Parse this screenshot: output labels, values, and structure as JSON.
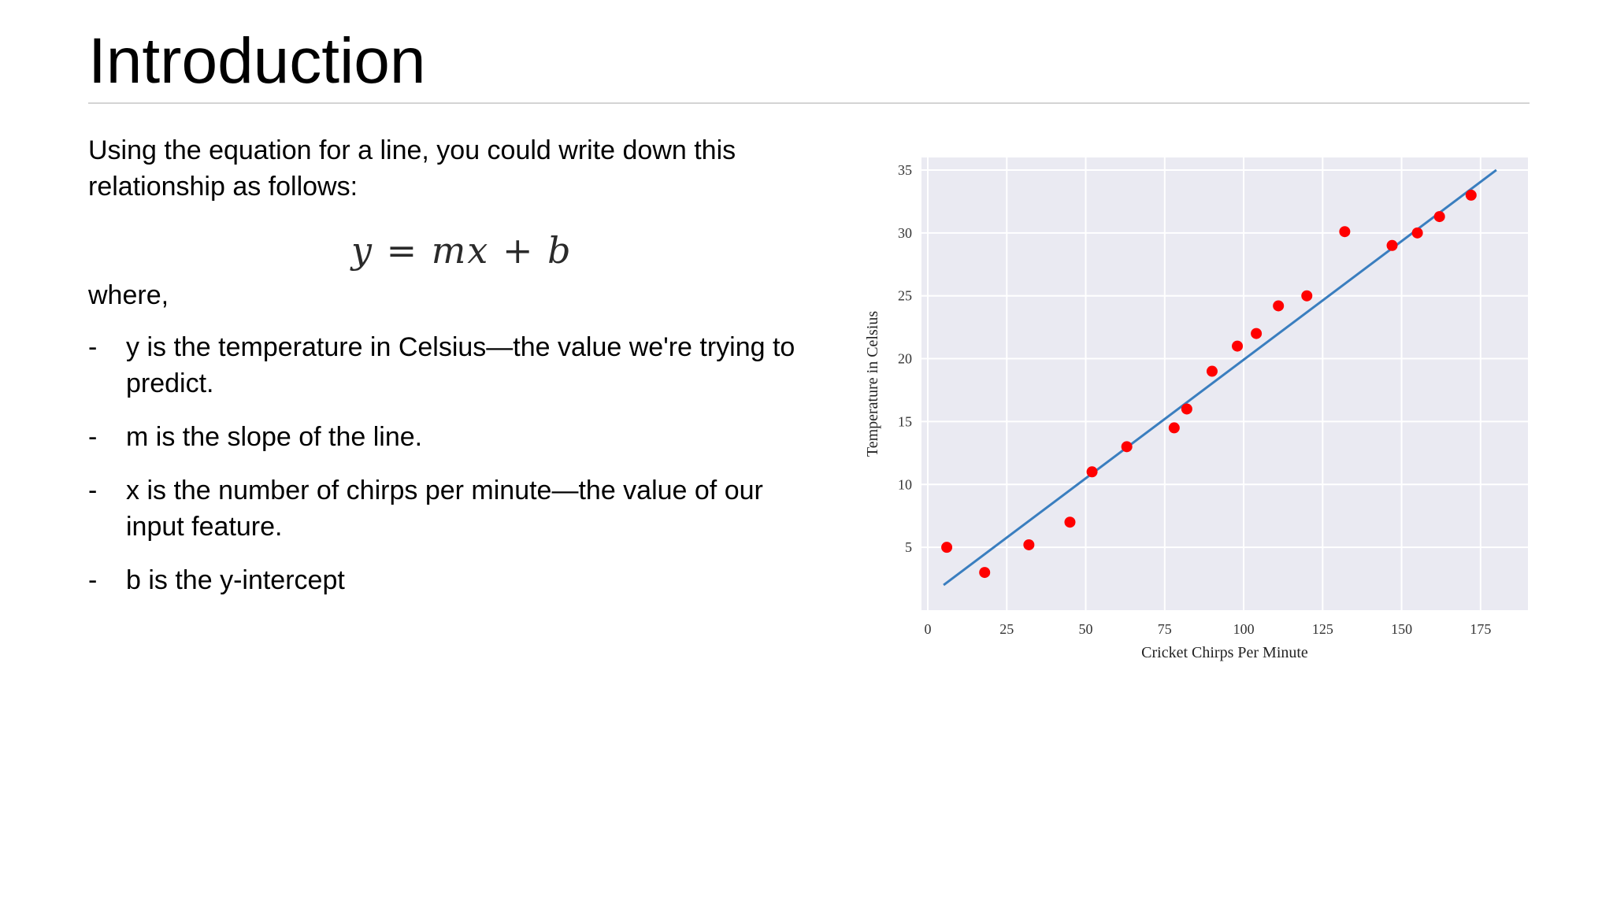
{
  "slide": {
    "title": "Introduction",
    "intro_text": "Using the equation for a line, you could write down this relationship as follows:",
    "equation": "y = mx + b",
    "where_label": "where,",
    "bullet_marker": "-",
    "bullets": [
      "y is the temperature in Celsius—the value we're trying to predict.",
      "m is the slope of the line.",
      "x is the number of chirps per minute—the value of our input feature.",
      "b is the y-intercept"
    ]
  },
  "chart_data": {
    "type": "scatter",
    "xlabel": "Cricket Chirps Per Minute",
    "ylabel": "Temperature in Celsius",
    "xlim": [
      -2,
      190
    ],
    "ylim": [
      0,
      36
    ],
    "xticks": [
      0,
      25,
      50,
      75,
      100,
      125,
      150,
      175
    ],
    "yticks": [
      5,
      10,
      15,
      20,
      25,
      30,
      35
    ],
    "grid": true,
    "background_color": "#eaeaf2",
    "point_color": "#ff0000",
    "line_color": "#3a7ebf",
    "points": [
      {
        "x": 6,
        "y": 5.0
      },
      {
        "x": 18,
        "y": 3.0
      },
      {
        "x": 32,
        "y": 5.2
      },
      {
        "x": 45,
        "y": 7.0
      },
      {
        "x": 52,
        "y": 11.0
      },
      {
        "x": 63,
        "y": 13.0
      },
      {
        "x": 78,
        "y": 14.5
      },
      {
        "x": 82,
        "y": 16.0
      },
      {
        "x": 90,
        "y": 19.0
      },
      {
        "x": 98,
        "y": 21.0
      },
      {
        "x": 104,
        "y": 22.0
      },
      {
        "x": 111,
        "y": 24.2
      },
      {
        "x": 120,
        "y": 25.0
      },
      {
        "x": 132,
        "y": 30.1
      },
      {
        "x": 147,
        "y": 29.0
      },
      {
        "x": 155,
        "y": 30.0
      },
      {
        "x": 162,
        "y": 31.3
      },
      {
        "x": 172,
        "y": 33.0
      }
    ],
    "fit_line": [
      {
        "x": 5,
        "y": 2.0
      },
      {
        "x": 180,
        "y": 35.0
      }
    ]
  }
}
